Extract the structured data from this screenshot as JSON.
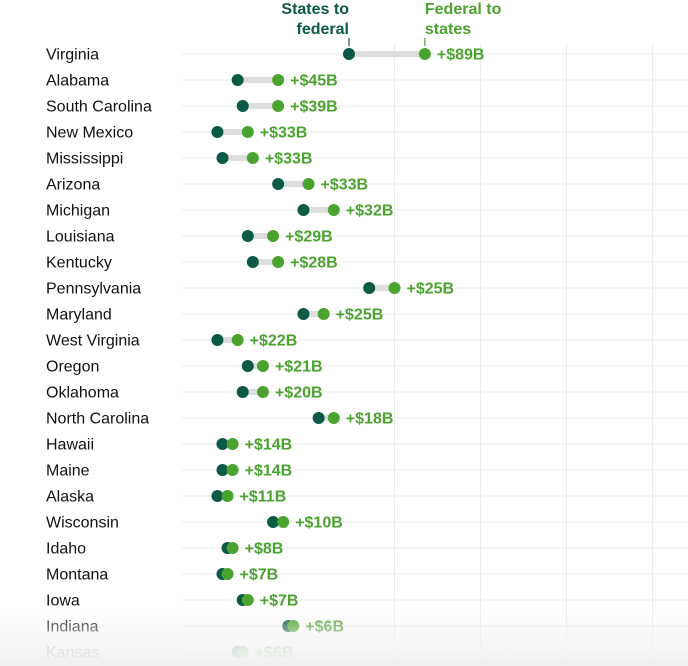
{
  "chart_data": {
    "type": "dumbbell",
    "legend": {
      "states_to_federal": [
        "States to",
        "federal"
      ],
      "federal_to_states": [
        "Federal to",
        "states"
      ]
    },
    "colors": {
      "states_to_federal": "#0b5a45",
      "federal_to_states": "#4aa32e",
      "connector": "#dddddd",
      "grid": "#ebebeb",
      "label": "#111111"
    },
    "rows": [
      {
        "state": "Virginia",
        "states_to_federal": 0.33,
        "federal_to_states": 0.48,
        "label": "+$89B"
      },
      {
        "state": "Alabama",
        "states_to_federal": 0.11,
        "federal_to_states": 0.19,
        "label": "+$45B"
      },
      {
        "state": "South Carolina",
        "states_to_federal": 0.12,
        "federal_to_states": 0.19,
        "label": "+$39B"
      },
      {
        "state": "New Mexico",
        "states_to_federal": 0.07,
        "federal_to_states": 0.13,
        "label": "+$33B"
      },
      {
        "state": "Mississippi",
        "states_to_federal": 0.08,
        "federal_to_states": 0.14,
        "label": "+$33B"
      },
      {
        "state": "Arizona",
        "states_to_federal": 0.19,
        "federal_to_states": 0.25,
        "label": "+$33B"
      },
      {
        "state": "Michigan",
        "states_to_federal": 0.24,
        "federal_to_states": 0.3,
        "label": "+$32B"
      },
      {
        "state": "Louisiana",
        "states_to_federal": 0.13,
        "federal_to_states": 0.18,
        "label": "+$29B"
      },
      {
        "state": "Kentucky",
        "states_to_federal": 0.14,
        "federal_to_states": 0.19,
        "label": "+$28B"
      },
      {
        "state": "Pennsylvania",
        "states_to_federal": 0.37,
        "federal_to_states": 0.42,
        "label": "+$25B"
      },
      {
        "state": "Maryland",
        "states_to_federal": 0.24,
        "federal_to_states": 0.28,
        "label": "+$25B"
      },
      {
        "state": "West Virginia",
        "states_to_federal": 0.07,
        "federal_to_states": 0.11,
        "label": "+$22B"
      },
      {
        "state": "Oregon",
        "states_to_federal": 0.13,
        "federal_to_states": 0.16,
        "label": "+$21B"
      },
      {
        "state": "Oklahoma",
        "states_to_federal": 0.12,
        "federal_to_states": 0.16,
        "label": "+$20B"
      },
      {
        "state": "North Carolina",
        "states_to_federal": 0.27,
        "federal_to_states": 0.3,
        "label": "+$18B"
      },
      {
        "state": "Hawaii",
        "states_to_federal": 0.08,
        "federal_to_states": 0.1,
        "label": "+$14B"
      },
      {
        "state": "Maine",
        "states_to_federal": 0.08,
        "federal_to_states": 0.1,
        "label": "+$14B"
      },
      {
        "state": "Alaska",
        "states_to_federal": 0.07,
        "federal_to_states": 0.09,
        "label": "+$11B"
      },
      {
        "state": "Wisconsin",
        "states_to_federal": 0.18,
        "federal_to_states": 0.2,
        "label": "+$10B"
      },
      {
        "state": "Idaho",
        "states_to_federal": 0.09,
        "federal_to_states": 0.1,
        "label": "+$8B"
      },
      {
        "state": "Montana",
        "states_to_federal": 0.08,
        "federal_to_states": 0.09,
        "label": "+$7B"
      },
      {
        "state": "Iowa",
        "states_to_federal": 0.12,
        "federal_to_states": 0.13,
        "label": "+$7B"
      },
      {
        "state": "Indiana",
        "states_to_federal": 0.21,
        "federal_to_states": 0.22,
        "label": "+$6B"
      },
      {
        "state": "Kansas",
        "states_to_federal": 0.11,
        "federal_to_states": 0.12,
        "label": "+$6B"
      }
    ]
  }
}
